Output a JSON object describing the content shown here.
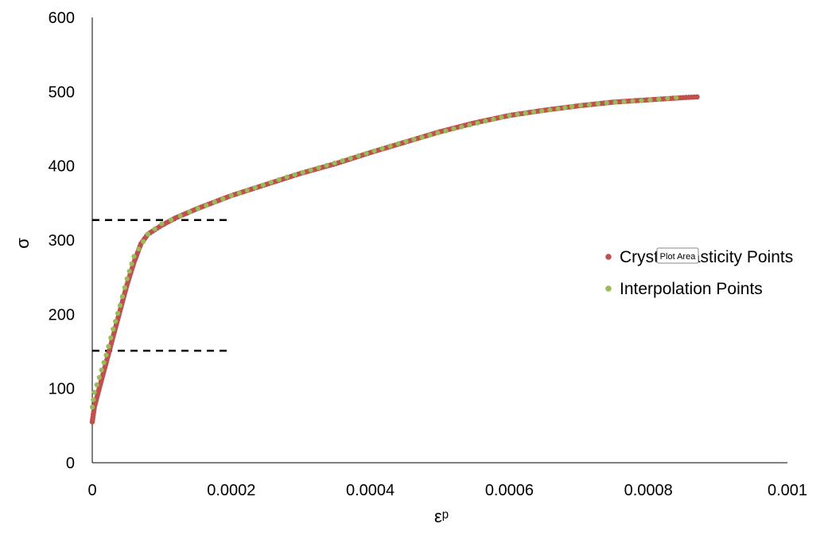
{
  "chart_data": {
    "type": "scatter",
    "xlabel": "εᵖ",
    "ylabel": "σ",
    "xlim": [
      0,
      0.001
    ],
    "ylim": [
      0,
      600
    ],
    "x_ticks": [
      {
        "value": 0,
        "label": "0"
      },
      {
        "value": 0.0002,
        "label": "0.0002"
      },
      {
        "value": 0.0004,
        "label": "0.0004"
      },
      {
        "value": 0.0006,
        "label": "0.0006"
      },
      {
        "value": 0.0008,
        "label": "0.0008"
      },
      {
        "value": 0.001,
        "label": "0.001"
      }
    ],
    "y_ticks": [
      {
        "value": 0,
        "label": "0"
      },
      {
        "value": 100,
        "label": "100"
      },
      {
        "value": 200,
        "label": "200"
      },
      {
        "value": 300,
        "label": "300"
      },
      {
        "value": 400,
        "label": "400"
      },
      {
        "value": 500,
        "label": "500"
      },
      {
        "value": 600,
        "label": "600"
      }
    ],
    "grid": false,
    "legend_position": "right",
    "tooltip": "Plot Area",
    "series": [
      {
        "name": "Crystal Plasticity Points",
        "color": "#c0504d",
        "points": [
          [
            0,
            55
          ],
          [
            3e-06,
            75
          ],
          [
            1e-05,
            100
          ],
          [
            2e-05,
            135
          ],
          [
            3e-05,
            170
          ],
          [
            4e-05,
            205
          ],
          [
            5e-05,
            240
          ],
          [
            6e-05,
            270
          ],
          [
            7e-05,
            295
          ],
          [
            8e-05,
            308
          ],
          [
            0.0001,
            320
          ],
          [
            0.00012,
            330
          ],
          [
            0.00015,
            342
          ],
          [
            0.0002,
            360
          ],
          [
            0.00025,
            375
          ],
          [
            0.0003,
            390
          ],
          [
            0.00035,
            403
          ],
          [
            0.0004,
            418
          ],
          [
            0.00045,
            432
          ],
          [
            0.0005,
            446
          ],
          [
            0.00055,
            458
          ],
          [
            0.0006,
            468
          ],
          [
            0.00065,
            475
          ],
          [
            0.0007,
            481
          ],
          [
            0.00075,
            486
          ],
          [
            0.0008,
            489
          ],
          [
            0.00085,
            492
          ],
          [
            0.00087,
            493
          ]
        ]
      },
      {
        "name": "Interpolation Points",
        "color": "#9bbb59",
        "points": [
          [
            0,
            75
          ],
          [
            3e-06,
            95
          ],
          [
            1e-05,
            115
          ],
          [
            2e-05,
            145
          ],
          [
            3e-05,
            180
          ],
          [
            4e-05,
            212
          ],
          [
            5e-05,
            248
          ],
          [
            6e-05,
            278
          ],
          [
            8e-05,
            308
          ],
          [
            0.0001,
            322
          ],
          [
            0.00014,
            338
          ],
          [
            0.0002,
            360
          ],
          [
            0.00028,
            385
          ],
          [
            0.00036,
            407
          ],
          [
            0.00044,
            430
          ],
          [
            0.00052,
            450
          ],
          [
            0.0006,
            468
          ],
          [
            0.00067,
            477
          ],
          [
            0.00069,
            480
          ],
          [
            0.00074,
            485
          ],
          [
            0.00079,
            488
          ],
          [
            0.00084,
            492
          ]
        ]
      }
    ],
    "reference_lines": [
      {
        "y": 327,
        "x_start": 0,
        "x_end": 0.0002,
        "style": "dashed"
      },
      {
        "y": 151,
        "x_start": 0,
        "x_end": 0.0002,
        "style": "dashed"
      }
    ]
  }
}
